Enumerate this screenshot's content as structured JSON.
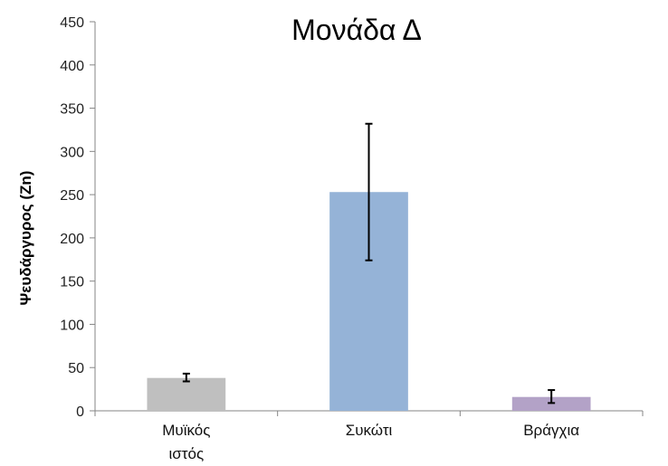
{
  "chart_data": {
    "type": "bar",
    "title": "Μονάδα Δ",
    "xlabel": "",
    "ylabel": "Ψευδάργυρος (Zn)",
    "ylim": [
      0,
      450
    ],
    "yticks": [
      0,
      50,
      100,
      150,
      200,
      250,
      300,
      350,
      400,
      450
    ],
    "grid": false,
    "legend": "none",
    "categories": [
      [
        "Μυϊκός",
        "ιστός"
      ],
      [
        "Συκώτι"
      ],
      [
        "Βράγχια"
      ]
    ],
    "values": [
      38,
      253,
      16
    ],
    "error_low": [
      34,
      174,
      9
    ],
    "error_high": [
      43,
      332,
      24
    ],
    "colors": [
      "#bfbfbf",
      "#95b3d7",
      "#b3a2c7"
    ]
  }
}
